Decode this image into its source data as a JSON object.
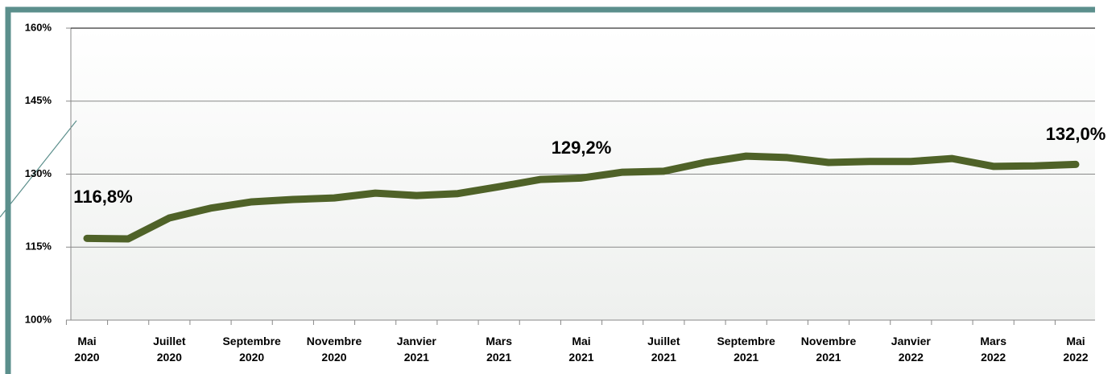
{
  "chart_data": {
    "type": "line",
    "categories": [
      "Mai\n2020",
      null,
      "Juillet\n2020",
      null,
      "Septembre\n2020",
      null,
      "Novembre\n2020",
      null,
      "Janvier\n2021",
      null,
      "Mars\n2021",
      null,
      "Mai\n2021",
      null,
      "Juillet\n2021",
      null,
      "Septembre\n2021",
      null,
      "Novembre\n2021",
      null,
      "Janvier\n2022",
      null,
      "Mars\n2022",
      null,
      "Mai\n2022"
    ],
    "series": [
      {
        "color": "#4f6228",
        "values": [
          116.8,
          116.7,
          121.0,
          123.0,
          124.3,
          124.8,
          125.1,
          126.1,
          125.6,
          126.0,
          127.4,
          128.9,
          129.2,
          130.4,
          130.6,
          132.4,
          133.7,
          133.4,
          132.4,
          132.6,
          132.6,
          133.2,
          131.6,
          131.7,
          132.0
        ],
        "value_labels": [
          "116,8%",
          null,
          null,
          null,
          null,
          null,
          null,
          null,
          null,
          null,
          null,
          null,
          "129,2%",
          null,
          null,
          null,
          null,
          null,
          null,
          null,
          null,
          null,
          null,
          null,
          "132,0%"
        ]
      }
    ],
    "ylim": [
      100,
      160
    ],
    "yticks": [
      {
        "value": 100,
        "label": "100%"
      },
      {
        "value": 115,
        "label": "115%"
      },
      {
        "value": 130,
        "label": "130%"
      },
      {
        "value": 145,
        "label": "145%"
      },
      {
        "value": 160,
        "label": "160%"
      }
    ],
    "grid": true
  }
}
